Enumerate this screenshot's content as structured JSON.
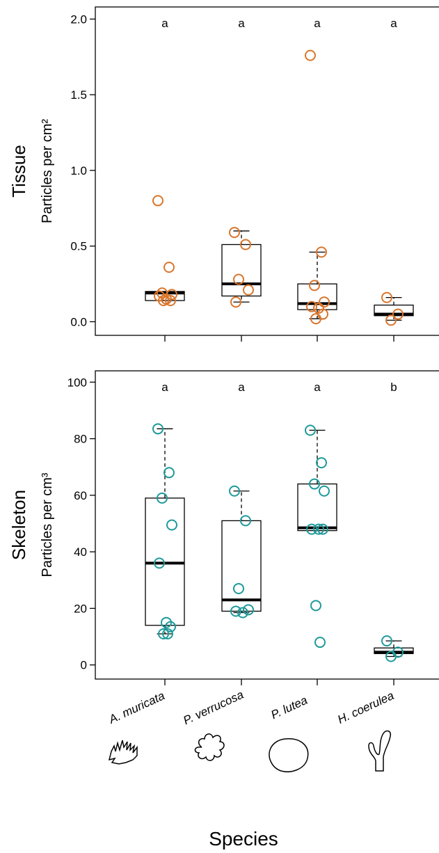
{
  "chart_data": [
    {
      "type": "box",
      "y_title": "Tissue",
      "y_label": "Particles per cm²",
      "color": "#d9752b",
      "ylim": [
        -0.09,
        2.08
      ],
      "yticks": [
        {
          "value": 0,
          "label": "0.0"
        },
        0.5,
        {
          "value": 1,
          "label": "1.0"
        },
        1.5,
        {
          "value": 2,
          "label": "2.0"
        }
      ],
      "annotations": [
        "a",
        "a",
        "a",
        "a"
      ],
      "boxes": [
        {
          "whisker_low": 0.14,
          "q1": 0.14,
          "median": 0.19,
          "q3": 0.2,
          "whisker_high": 0.2,
          "points": [
            0.8,
            0.36,
            0.19,
            0.18,
            0.17,
            0.15,
            0.14,
            0.14
          ]
        },
        {
          "whisker_low": 0.13,
          "q1": 0.17,
          "median": 0.25,
          "q3": 0.51,
          "whisker_high": 0.6,
          "points": [
            0.59,
            0.51,
            0.28,
            0.21,
            0.13
          ]
        },
        {
          "whisker_low": 0.02,
          "q1": 0.08,
          "median": 0.12,
          "q3": 0.25,
          "whisker_high": 0.46,
          "points": [
            1.76,
            0.46,
            0.24,
            0.13,
            0.1,
            0.09,
            0.05,
            0.02
          ]
        },
        {
          "whisker_low": 0.01,
          "q1": 0.04,
          "median": 0.05,
          "q3": 0.11,
          "whisker_high": 0.16,
          "points": [
            0.16,
            0.05,
            0.01
          ]
        }
      ]
    },
    {
      "type": "box",
      "y_title": "Skeleton",
      "y_label": "Particles per cm³",
      "color": "#1e9a9a",
      "ylim": [
        -5,
        104
      ],
      "yticks": [
        0,
        20,
        40,
        60,
        80,
        100
      ],
      "annotations": [
        "a",
        "a",
        "a",
        "b"
      ],
      "categories": [
        "A. muricata",
        "P. verrucosa",
        "P. lutea",
        "H. coerulea"
      ],
      "x_label": "Species",
      "boxes": [
        {
          "whisker_low": 11,
          "q1": 14,
          "median": 36,
          "q3": 59,
          "whisker_high": 83.5,
          "points": [
            83.5,
            68,
            59,
            49.5,
            36,
            15,
            13.5,
            11,
            11
          ]
        },
        {
          "whisker_low": 18.5,
          "q1": 19,
          "median": 23,
          "q3": 51,
          "whisker_high": 61.5,
          "points": [
            61.5,
            51,
            27,
            19.5,
            19,
            18.5
          ]
        },
        {
          "whisker_low": 47.5,
          "q1": 47.5,
          "median": 48.5,
          "q3": 64,
          "whisker_high": 83,
          "points": [
            83,
            71.5,
            64,
            61.5,
            48,
            48,
            48,
            21,
            8
          ]
        },
        {
          "whisker_low": 3,
          "q1": 4,
          "median": 4.5,
          "q3": 6,
          "whisker_high": 8.5,
          "points": [
            8.5,
            4.5,
            3
          ]
        }
      ]
    }
  ]
}
